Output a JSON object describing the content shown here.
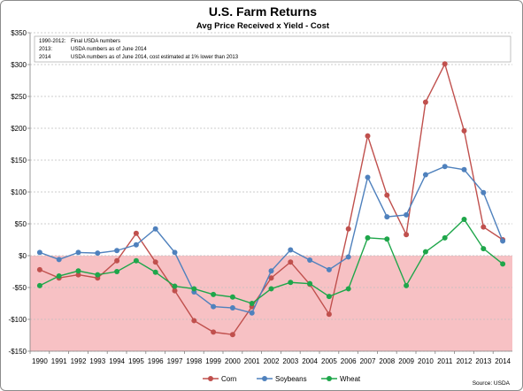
{
  "chart_data": {
    "type": "line",
    "title": "U.S. Farm Returns",
    "subtitle": "Avg Price Received x Yield - Cost",
    "xlabel": "",
    "ylabel": "",
    "x": [
      "1990",
      "1991",
      "1992",
      "1993",
      "1994",
      "1995",
      "1996",
      "1997",
      "1998",
      "1999",
      "2000",
      "2001",
      "2002",
      "2003",
      "2004",
      "2005",
      "2006",
      "2007",
      "2008",
      "2009",
      "2010",
      "2011",
      "2012",
      "2013",
      "2014"
    ],
    "ylim": [
      -150,
      350
    ],
    "yticks": [
      -150,
      -100,
      -50,
      0,
      50,
      100,
      150,
      200,
      250,
      300,
      350
    ],
    "ytick_labels": [
      "-$150",
      "-$100",
      "-$50",
      "$0",
      "$50",
      "$100",
      "$150",
      "$200",
      "$250",
      "$300",
      "$350"
    ],
    "grid": true,
    "negative_region_color": "#f7c1c4",
    "legend_position": "bottom",
    "series": [
      {
        "name": "Corn",
        "color": "#c0504d",
        "values": [
          -22,
          -35,
          -30,
          -35,
          -8,
          35,
          -10,
          -55,
          -102,
          -120,
          -124,
          -80,
          -35,
          -10,
          -45,
          -92,
          42,
          188,
          95,
          33,
          241,
          301,
          196,
          45,
          25
        ]
      },
      {
        "name": "Soybeans",
        "color": "#4f81bd",
        "values": [
          5,
          -6,
          5,
          4,
          8,
          17,
          42,
          5,
          -57,
          -80,
          -82,
          -90,
          -24,
          9,
          -7,
          -22,
          -2,
          123,
          61,
          64,
          127,
          140,
          135,
          99,
          23
        ]
      },
      {
        "name": "Wheat",
        "color": "#1ea64a",
        "values": [
          -47,
          -32,
          -24,
          -30,
          -25,
          -8,
          -26,
          -48,
          -52,
          -61,
          -65,
          -75,
          -52,
          -42,
          -44,
          -64,
          -52,
          28,
          26,
          -47,
          6,
          28,
          57,
          11,
          -13
        ]
      }
    ],
    "annotations": [
      [
        "1990-2012:",
        "Final USDA numbers"
      ],
      [
        "2013:",
        "USDA numbers as of June 2014"
      ],
      [
        "2014",
        "USDA numbers as of June 2014, cost estimated at 1% lower than 2013"
      ]
    ],
    "source": "Source: USDA"
  }
}
